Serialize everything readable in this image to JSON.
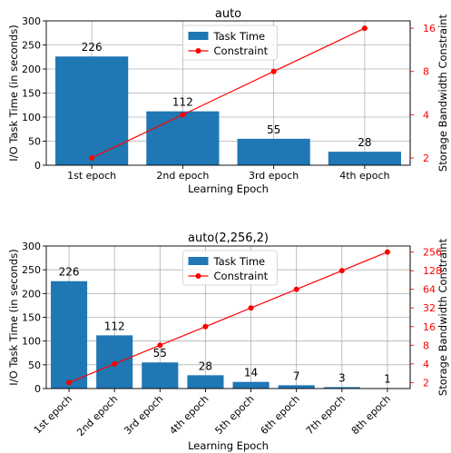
{
  "chart_data": [
    {
      "type": "bar",
      "title": "auto",
      "xlabel": "Learning Epoch",
      "ylabel": "I/O Task Time (in seconds)",
      "ylabel_right": "Storage Bandwidth Constraint",
      "categories": [
        "1st epoch",
        "2nd epoch",
        "3rd epoch",
        "4th epoch"
      ],
      "ylim": [
        0,
        300
      ],
      "yticks": [
        0,
        50,
        100,
        150,
        200,
        250,
        300
      ],
      "ylim_right": [
        1.78,
        18
      ],
      "yticks_right": [
        2,
        4,
        8,
        16
      ],
      "right_scale": "log2",
      "grid": true,
      "legend_position": "top-center",
      "xtick_rotation": 0,
      "series": [
        {
          "name": "Task Time",
          "type": "bar",
          "axis": "left",
          "color": "#1f77b4",
          "values": [
            226,
            112,
            55,
            28
          ]
        },
        {
          "name": "Constraint",
          "type": "line",
          "axis": "right",
          "color": "#ff0000",
          "values": [
            2,
            4,
            8,
            16
          ]
        }
      ],
      "data_labels": [
        "226",
        "112",
        "55",
        "28"
      ]
    },
    {
      "type": "bar",
      "title": "auto(2,256,2)",
      "xlabel": "Learning Epoch",
      "ylabel": "I/O Task Time (in seconds)",
      "ylabel_right": "Storage Bandwidth Constraint",
      "categories": [
        "1st epoch",
        "2nd epoch",
        "3rd epoch",
        "4th epoch",
        "5th epoch",
        "6th epoch",
        "7th epoch",
        "8th epoch"
      ],
      "ylim": [
        0,
        300
      ],
      "yticks": [
        0,
        50,
        100,
        150,
        200,
        250,
        300
      ],
      "ylim_right": [
        1.6,
        320
      ],
      "yticks_right": [
        2,
        4,
        8,
        16,
        32,
        64,
        128,
        256
      ],
      "right_scale": "log2",
      "grid": true,
      "legend_position": "top-center",
      "xtick_rotation": 45,
      "series": [
        {
          "name": "Task Time",
          "type": "bar",
          "axis": "left",
          "color": "#1f77b4",
          "values": [
            226,
            112,
            55,
            28,
            14,
            7,
            3,
            1
          ]
        },
        {
          "name": "Constraint",
          "type": "line",
          "axis": "right",
          "color": "#ff0000",
          "values": [
            2,
            4,
            8,
            16,
            32,
            64,
            128,
            256
          ]
        }
      ],
      "data_labels": [
        "226",
        "112",
        "55",
        "28",
        "14",
        "7",
        "3",
        "1"
      ]
    }
  ]
}
